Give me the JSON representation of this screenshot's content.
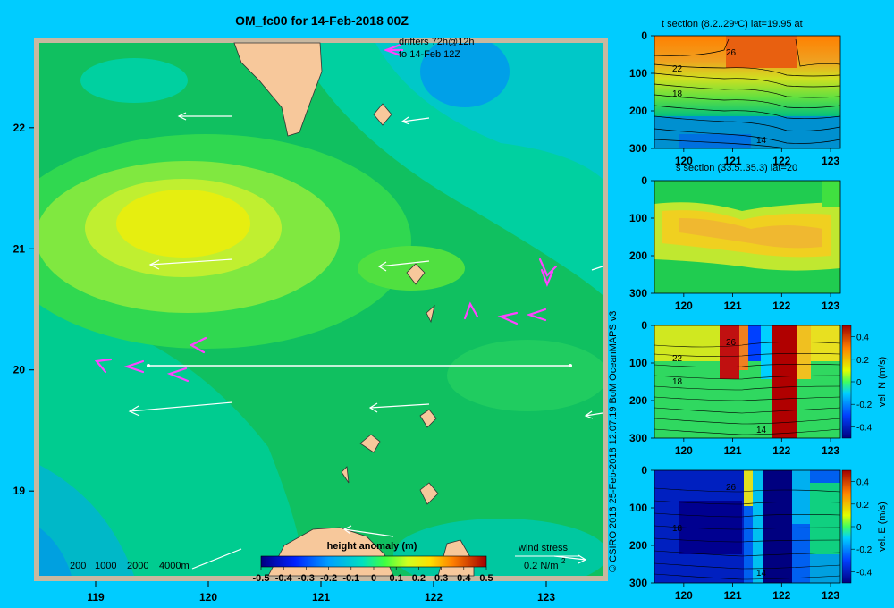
{
  "title": "OM_fc00 for 14-Feb-2018 00Z",
  "credit": "© CSIRO 2016  25-Feb-2018 12:07:19 BoM OceanMAPS v3",
  "colors": {
    "background": "#00ccff",
    "frame": "#c8b8a0",
    "land": "#f7c89b",
    "drifter": "#ff44ff",
    "current": "#ffffff"
  },
  "map": {
    "lon_range": [
      118.5,
      123.5
    ],
    "lat_range": [
      18.3,
      22.7
    ],
    "xticks": [
      "119",
      "120",
      "121",
      "122",
      "123"
    ],
    "yticks": [
      "19",
      "20",
      "21",
      "22"
    ],
    "drifters_label_1": "drifters 72h@12h",
    "drifters_label_2": "to 14-Feb 12Z",
    "depth_legend": [
      "200",
      "1000",
      "2000",
      "4000m"
    ],
    "wind_label": "wind stress",
    "wind_value": "0.2 N/m",
    "wind_exp": "2",
    "colorbar_title": "height anomaly (m)",
    "colorbar_ticks": [
      "-0.5",
      "-0.4",
      "-0.3",
      "-0.2",
      "-0.1",
      "0",
      "0.1",
      "0.2",
      "0.3",
      "0.4",
      "0.5"
    ]
  },
  "chart_data": [
    {
      "type": "heatmap",
      "name": "height-anomaly-map",
      "title": "OM_fc00 for 14-Feb-2018 00Z",
      "xlim": [
        118.5,
        123.5
      ],
      "ylim": [
        18.3,
        22.7
      ],
      "colorbar": {
        "label": "height anomaly (m)",
        "range": [
          -0.5,
          0.5
        ]
      },
      "features": [
        {
          "kind": "high",
          "lon": 120.0,
          "lat": 21.1,
          "value": 0.15
        },
        {
          "kind": "low",
          "lon": 122.1,
          "lat": 22.3,
          "value": -0.15
        },
        {
          "kind": "low",
          "lon": 118.8,
          "lat": 18.5,
          "value": -0.05
        }
      ],
      "section_line": {
        "lat": 19.95,
        "lon": [
          119.5,
          123.0
        ]
      }
    },
    {
      "type": "heatmap",
      "name": "t-section",
      "title": "t section (8.2..29",
      "title_end": "C) lat=19.95 at",
      "xticks": [
        "120",
        "121",
        "122",
        "123"
      ],
      "yticks": [
        "0",
        "100",
        "200",
        "300"
      ],
      "contour_labels": [
        "26",
        "22",
        "18",
        "14"
      ],
      "range": [
        8.2,
        29
      ]
    },
    {
      "type": "heatmap",
      "name": "s-section",
      "title": "s section (33.5..35.3) lat=20",
      "xticks": [
        "120",
        "121",
        "122",
        "123"
      ],
      "yticks": [
        "0",
        "100",
        "200",
        "300"
      ],
      "range": [
        33.5,
        35.3
      ]
    },
    {
      "type": "heatmap",
      "name": "vel-n-section",
      "xticks": [
        "120",
        "121",
        "122",
        "123"
      ],
      "yticks": [
        "0",
        "100",
        "200",
        "300"
      ],
      "contour_labels": [
        "26",
        "22",
        "18",
        "14"
      ],
      "colorbar": {
        "label": "vel. N (m/s)",
        "ticks": [
          "0.4",
          "0.2",
          "0",
          "-0.2",
          "-0.4"
        ]
      }
    },
    {
      "type": "heatmap",
      "name": "vel-e-section",
      "xticks": [
        "120",
        "121",
        "122",
        "123"
      ],
      "yticks": [
        "0",
        "100",
        "200",
        "300"
      ],
      "contour_labels": [
        "26",
        "18",
        "14"
      ],
      "colorbar": {
        "label": "vel. E (m/s)",
        "ticks": [
          "0.4",
          "0.2",
          "0",
          "-0.2",
          "-0.4"
        ]
      }
    }
  ]
}
